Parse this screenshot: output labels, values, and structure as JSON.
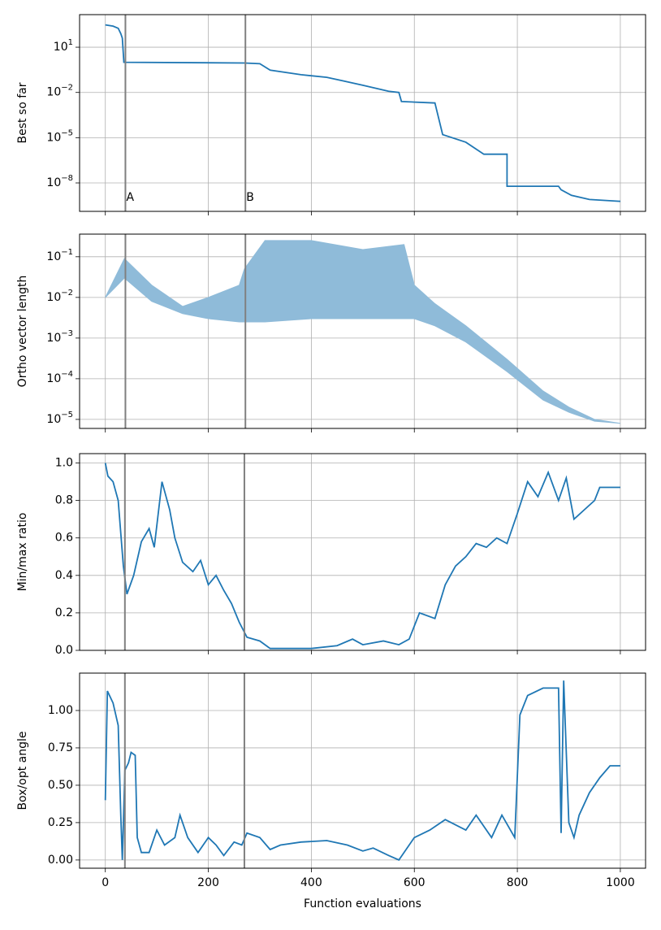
{
  "chart_data": [
    {
      "type": "line",
      "ylabel": "Best so far",
      "log_y": true,
      "grid": true,
      "xlim": [
        -50,
        1049
      ],
      "xticks": [
        0,
        200,
        400,
        600,
        800,
        1000
      ],
      "ylim": [
        1445,
        1.3e-10
      ],
      "yticks": [
        {
          "value": 10,
          "label": "10^1"
        },
        {
          "value": 0.01,
          "label": "10^−2"
        },
        {
          "value": 1e-05,
          "label": "10^−5"
        },
        {
          "value": 1e-08,
          "label": "10^−8"
        }
      ],
      "vlines": [
        39,
        272
      ],
      "vline_color": "#808080",
      "annotations": [
        {
          "text": "A",
          "x": 39,
          "y": 1.1e-09
        },
        {
          "text": "B",
          "x": 272,
          "y": 1.1e-09
        }
      ],
      "series": [
        {
          "color": "#1f77b4",
          "x": [
            0,
            15,
            25,
            30,
            33,
            36,
            270,
            300,
            320,
            380,
            430,
            460,
            500,
            550,
            570,
            575,
            640,
            655,
            700,
            735,
            780,
            780,
            880,
            885,
            905,
            940,
            1000
          ],
          "values": [
            300,
            250,
            180,
            80,
            40,
            1.0,
            0.9,
            0.8,
            0.3,
            0.15,
            0.1,
            0.06,
            0.03,
            0.012,
            0.01,
            0.0025,
            0.002,
            1.6e-05,
            5e-06,
            8e-07,
            8e-07,
            6e-09,
            6e-09,
            3.5e-09,
            1.5e-09,
            8e-10,
            6e-10
          ]
        }
      ]
    },
    {
      "type": "band",
      "ylabel": "Ortho vector length",
      "log_y": true,
      "grid": true,
      "xlim": [
        -50,
        1049
      ],
      "xticks": [
        0,
        200,
        400,
        600,
        800,
        1000
      ],
      "ylim": [
        0.36,
        6e-06
      ],
      "yticks": [
        {
          "value": 0.1,
          "label": "10^−1"
        },
        {
          "value": 0.01,
          "label": "10^−2"
        },
        {
          "value": 0.001,
          "label": "10^−3"
        },
        {
          "value": 0.0001,
          "label": "10^−4"
        },
        {
          "value": 1e-05,
          "label": "10^−5"
        }
      ],
      "vlines": [
        39,
        272
      ],
      "vline_color": "#808080",
      "series": [
        {
          "color": "#8fbbd9",
          "x": [
            0,
            37,
            90,
            150,
            200,
            260,
            270,
            310,
            400,
            500,
            580,
            600,
            640,
            700,
            780,
            850,
            900,
            950,
            1000
          ],
          "upper": [
            0.01,
            0.09,
            0.02,
            0.006,
            0.01,
            0.02,
            0.05,
            0.25,
            0.25,
            0.15,
            0.2,
            0.02,
            0.007,
            0.002,
            0.0003,
            5e-05,
            2e-05,
            1e-05,
            8e-06
          ],
          "lower": [
            0.01,
            0.03,
            0.008,
            0.004,
            0.003,
            0.0025,
            0.0025,
            0.0025,
            0.003,
            0.003,
            0.003,
            0.003,
            0.002,
            0.0008,
            0.00015,
            3e-05,
            1.5e-05,
            9e-06,
            8e-06
          ]
        }
      ]
    },
    {
      "type": "line",
      "ylabel": "Min/max ratio",
      "grid": true,
      "xlim": [
        -50,
        1049
      ],
      "xticks": [
        0,
        200,
        400,
        600,
        800,
        1000
      ],
      "ylim": [
        0,
        1.05
      ],
      "yticks": [
        {
          "value": 0,
          "label": "0.0"
        },
        0.2,
        0.4,
        0.6,
        0.8,
        {
          "value": 1,
          "label": "1.0"
        }
      ],
      "vlines": [
        38,
        270
      ],
      "vline_color": "#808080",
      "series": [
        {
          "color": "#1f77b4",
          "x": [
            0,
            5,
            15,
            25,
            35,
            42,
            55,
            70,
            85,
            95,
            110,
            125,
            135,
            150,
            170,
            185,
            200,
            215,
            230,
            245,
            260,
            275,
            300,
            320,
            350,
            400,
            450,
            480,
            500,
            540,
            570,
            590,
            610,
            640,
            660,
            680,
            700,
            720,
            740,
            760,
            780,
            800,
            820,
            840,
            860,
            880,
            895,
            910,
            930,
            950,
            960,
            980,
            1000
          ],
          "values": [
            1.0,
            0.93,
            0.9,
            0.8,
            0.45,
            0.3,
            0.4,
            0.58,
            0.65,
            0.55,
            0.9,
            0.75,
            0.6,
            0.47,
            0.42,
            0.48,
            0.35,
            0.4,
            0.32,
            0.25,
            0.15,
            0.07,
            0.05,
            0.01,
            0.01,
            0.01,
            0.025,
            0.06,
            0.03,
            0.05,
            0.03,
            0.06,
            0.2,
            0.17,
            0.35,
            0.45,
            0.5,
            0.57,
            0.55,
            0.6,
            0.57,
            0.73,
            0.9,
            0.82,
            0.95,
            0.8,
            0.92,
            0.7,
            0.75,
            0.8,
            0.87,
            0.87,
            0.87
          ]
        }
      ]
    },
    {
      "type": "line",
      "ylabel": "Box/opt angle",
      "xlabel": "Function evaluations",
      "grid": true,
      "xlim": [
        -50,
        1049
      ],
      "xticks": [
        0,
        200,
        400,
        600,
        800,
        1000
      ],
      "ylim": [
        -0.055,
        1.25
      ],
      "yticks": [
        {
          "value": 0,
          "label": "0.00"
        },
        0.25,
        {
          "value": 0.5,
          "label": "0.50"
        },
        0.75,
        {
          "value": 1,
          "label": "1.00"
        }
      ],
      "vlines": [
        38,
        270
      ],
      "vline_color": "#808080",
      "series": [
        {
          "color": "#1f77b4",
          "x": [
            0,
            4,
            15,
            25,
            30,
            33,
            38,
            45,
            50,
            58,
            62,
            70,
            85,
            100,
            115,
            135,
            145,
            160,
            180,
            200,
            215,
            230,
            250,
            265,
            275,
            300,
            320,
            340,
            380,
            430,
            470,
            500,
            520,
            550,
            570,
            600,
            630,
            660,
            700,
            720,
            750,
            770,
            795,
            805,
            820,
            850,
            880,
            885,
            890,
            900,
            910,
            920,
            940,
            960,
            980,
            1000
          ],
          "values": [
            0.4,
            1.13,
            1.05,
            0.9,
            0.3,
            0.0,
            0.6,
            0.65,
            0.72,
            0.7,
            0.15,
            0.05,
            0.05,
            0.2,
            0.1,
            0.15,
            0.3,
            0.15,
            0.05,
            0.15,
            0.1,
            0.03,
            0.12,
            0.1,
            0.18,
            0.15,
            0.07,
            0.1,
            0.12,
            0.13,
            0.1,
            0.06,
            0.08,
            0.03,
            0.0,
            0.15,
            0.2,
            0.27,
            0.2,
            0.3,
            0.15,
            0.3,
            0.15,
            0.97,
            1.1,
            1.15,
            1.15,
            0.18,
            1.2,
            0.25,
            0.15,
            0.3,
            0.45,
            0.55,
            0.63,
            0.63
          ]
        }
      ]
    }
  ]
}
